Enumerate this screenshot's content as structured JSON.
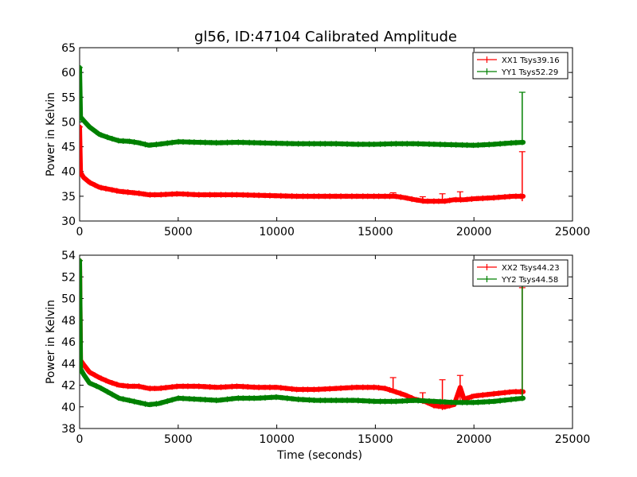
{
  "title": "gl56, ID:47104 Calibrated Amplitude",
  "colors": {
    "xx": "#ff0000",
    "yy": "#008000"
  },
  "chart_data": [
    {
      "type": "line",
      "xlabel": "",
      "ylabel": "Power in Kelvin",
      "xlim": [
        0,
        25000
      ],
      "ylim": [
        30,
        65
      ],
      "xticks": [
        "0",
        "5000",
        "10000",
        "15000",
        "20000",
        "25000"
      ],
      "yticks": [
        "30",
        "35",
        "40",
        "45",
        "50",
        "55",
        "60",
        "65"
      ],
      "legend_position": "top-right",
      "series": [
        {
          "name": "XX1 Tsys39.16",
          "color": "#ff0000",
          "x": [
            0,
            50,
            200,
            500,
            1000,
            1500,
            2000,
            2500,
            3000,
            3500,
            4000,
            5000,
            6000,
            7000,
            8000,
            9000,
            10000,
            11000,
            12000,
            13000,
            14000,
            15000,
            16000,
            16500,
            17000,
            17500,
            18000,
            18500,
            19000,
            19500,
            20000,
            21000,
            22000,
            22500
          ],
          "y": [
            49,
            39.8,
            38.8,
            37.8,
            36.8,
            36.4,
            36,
            35.8,
            35.6,
            35.3,
            35.3,
            35.5,
            35.3,
            35.3,
            35.3,
            35.2,
            35.1,
            35,
            35,
            35,
            35,
            35,
            35,
            34.7,
            34.3,
            34,
            34,
            34,
            34.3,
            34.3,
            34.5,
            34.7,
            35,
            35
          ],
          "spikes": [
            [
              0,
              49,
              39
            ],
            [
              15900,
              35.7,
              34.9
            ],
            [
              17400,
              34.9,
              34.0
            ],
            [
              18400,
              35.5,
              33.6
            ],
            [
              19300,
              35.9,
              34.2
            ],
            [
              22450,
              44,
              34
            ]
          ]
        },
        {
          "name": "YY1 Tsys52.29",
          "color": "#008000",
          "x": [
            0,
            50,
            200,
            500,
            1000,
            1500,
            2000,
            2500,
            3000,
            3500,
            4000,
            5000,
            6000,
            7000,
            8000,
            9000,
            10000,
            11000,
            12000,
            13000,
            14000,
            15000,
            16000,
            17000,
            18000,
            19000,
            20000,
            21000,
            22000,
            22500
          ],
          "y": [
            61,
            51,
            50.3,
            49,
            47.5,
            46.8,
            46.2,
            46.1,
            45.8,
            45.3,
            45.5,
            46,
            45.9,
            45.8,
            45.9,
            45.8,
            45.7,
            45.6,
            45.6,
            45.6,
            45.5,
            45.5,
            45.6,
            45.6,
            45.5,
            45.4,
            45.3,
            45.5,
            45.8,
            45.9
          ],
          "spikes": [
            [
              0,
              61,
              50
            ],
            [
              22450,
              56,
              45.9
            ]
          ]
        }
      ]
    },
    {
      "type": "line",
      "xlabel": "Time (seconds)",
      "ylabel": "Power in Kelvin",
      "xlim": [
        0,
        25000
      ],
      "ylim": [
        38,
        54
      ],
      "xticks": [
        "0",
        "5000",
        "10000",
        "15000",
        "20000",
        "25000"
      ],
      "yticks": [
        "38",
        "40",
        "42",
        "44",
        "46",
        "48",
        "50",
        "52",
        "54"
      ],
      "legend_position": "top-right",
      "series": [
        {
          "name": "XX2 Tsys44.23",
          "color": "#ff0000",
          "x": [
            0,
            50,
            200,
            500,
            1000,
            1500,
            2000,
            2500,
            3000,
            3500,
            4000,
            5000,
            6000,
            7000,
            8000,
            9000,
            10000,
            11000,
            12000,
            13000,
            14000,
            15000,
            15500,
            16000,
            16500,
            17000,
            17500,
            18000,
            18500,
            19000,
            19300,
            19500,
            20000,
            21000,
            22000,
            22500
          ],
          "y": [
            53.5,
            44.3,
            43.9,
            43.2,
            42.7,
            42.3,
            42,
            41.9,
            41.9,
            41.7,
            41.7,
            41.9,
            41.9,
            41.8,
            41.9,
            41.8,
            41.8,
            41.6,
            41.6,
            41.7,
            41.8,
            41.8,
            41.7,
            41.4,
            41.1,
            40.7,
            40.5,
            40.1,
            40,
            40.2,
            41.8,
            40.7,
            41,
            41.2,
            41.4,
            41.4
          ],
          "spikes": [
            [
              0,
              53.5,
              44
            ],
            [
              15900,
              42.7,
              41.3
            ],
            [
              17400,
              41.3,
              40.3
            ],
            [
              18400,
              42.5,
              39.7
            ],
            [
              19300,
              42.9,
              40.5
            ],
            [
              22450,
              51,
              41
            ]
          ]
        },
        {
          "name": "YY2 Tsys44.58",
          "color": "#008000",
          "x": [
            0,
            50,
            200,
            500,
            1000,
            1500,
            2000,
            2500,
            3000,
            3500,
            4000,
            5000,
            6000,
            7000,
            8000,
            9000,
            10000,
            11000,
            12000,
            13000,
            14000,
            15000,
            16000,
            17000,
            18000,
            19000,
            20000,
            21000,
            22000,
            22500
          ],
          "y": [
            53.5,
            43.5,
            43,
            42.2,
            41.8,
            41.3,
            40.8,
            40.6,
            40.4,
            40.2,
            40.3,
            40.8,
            40.7,
            40.6,
            40.8,
            40.8,
            40.9,
            40.7,
            40.6,
            40.6,
            40.6,
            40.5,
            40.5,
            40.6,
            40.5,
            40.4,
            40.4,
            40.5,
            40.7,
            40.8
          ],
          "spikes": [
            [
              0,
              53.5,
              43
            ],
            [
              22450,
              51.3,
              40.8
            ]
          ]
        }
      ]
    }
  ]
}
